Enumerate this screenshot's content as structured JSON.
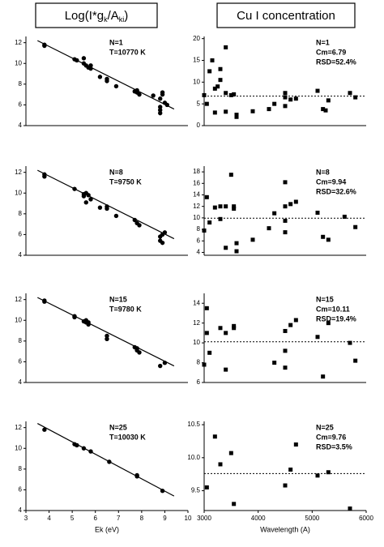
{
  "column_titles": {
    "left": [
      "Log(I*g",
      "k",
      "/A",
      "ki",
      ")"
    ],
    "right": "Cu I concentration"
  },
  "chart_data": [
    {
      "type": "scatter",
      "color": "#000000",
      "marker": "circle",
      "x": [
        3.8,
        3.8,
        5.1,
        5.2,
        5.5,
        5.5,
        5.6,
        5.7,
        5.8,
        5.8,
        6.2,
        6.5,
        6.5,
        6.9,
        7.7,
        7.8,
        7.9,
        7.8,
        8.5,
        8.8,
        8.9,
        8.9,
        8.8,
        8.8,
        8.8,
        9.0,
        9.1
      ],
      "y": [
        11.8,
        11.7,
        10.4,
        10.3,
        10.5,
        10.0,
        9.8,
        9.6,
        9.8,
        9.5,
        8.7,
        8.5,
        8.3,
        7.8,
        7.3,
        7.2,
        7.0,
        7.4,
        6.9,
        6.6,
        7.0,
        7.2,
        5.8,
        5.5,
        5.2,
        6.2,
        6.0
      ],
      "fit_line": {
        "x": [
          3.5,
          9.4
        ],
        "y": [
          12.2,
          5.6
        ]
      },
      "xlim": [
        3,
        10
      ],
      "ylim": [
        4,
        12.6
      ],
      "yticks": [
        4,
        6,
        8,
        10,
        12
      ],
      "annotations": [
        "N=1",
        "T=10770 K"
      ]
    },
    {
      "type": "scatter",
      "color": "#000000",
      "marker": "square",
      "x": [
        3000,
        3050,
        3100,
        3150,
        3200,
        3250,
        3200,
        3300,
        3300,
        3400,
        3400,
        3400,
        3500,
        3550,
        3600,
        3600,
        3900,
        4200,
        4300,
        4500,
        4500,
        4500,
        4600,
        4700,
        5100,
        5200,
        5250,
        5300,
        5700,
        5800
      ],
      "y": [
        7,
        5,
        12.5,
        15,
        8.5,
        9,
        3,
        13,
        10.5,
        18,
        7.5,
        3.2,
        7,
        7.2,
        2,
        2.5,
        3.3,
        3.8,
        5,
        6.5,
        7.5,
        4.5,
        6,
        6.2,
        8,
        3.8,
        3.5,
        5.8,
        7.5,
        6.5
      ],
      "hline": 6.79,
      "xlim": [
        3000,
        6000
      ],
      "ylim": [
        0,
        20.5
      ],
      "yticks": [
        0,
        5,
        10,
        15,
        20
      ],
      "annotations": [
        "N=1",
        "Cm=6.79",
        "RSD=52.4%"
      ]
    },
    {
      "type": "scatter",
      "color": "#000000",
      "marker": "circle",
      "x": [
        3.8,
        3.8,
        5.1,
        5.5,
        5.5,
        5.6,
        5.7,
        5.6,
        5.8,
        6.2,
        6.5,
        6.5,
        6.9,
        7.7,
        7.8,
        7.9,
        8.8,
        8.8,
        8.9,
        9.0,
        8.9
      ],
      "y": [
        11.8,
        11.6,
        10.4,
        9.9,
        9.7,
        10.0,
        9.8,
        9.1,
        9.4,
        8.6,
        8.5,
        8.7,
        7.8,
        7.4,
        7.1,
        6.9,
        5.8,
        5.4,
        6.0,
        6.2,
        5.2
      ],
      "fit_line": {
        "x": [
          3.5,
          9.4
        ],
        "y": [
          12.2,
          5.6
        ]
      },
      "xlim": [
        3,
        10
      ],
      "ylim": [
        4,
        12.6
      ],
      "yticks": [
        4,
        6,
        8,
        10,
        12
      ],
      "annotations": [
        "N=8",
        "T=9750 K"
      ]
    },
    {
      "type": "scatter",
      "color": "#000000",
      "marker": "square",
      "x": [
        3000,
        3050,
        3100,
        3200,
        3300,
        3400,
        3300,
        3400,
        3500,
        3550,
        3550,
        3600,
        3600,
        3900,
        4200,
        4300,
        4500,
        4500,
        4500,
        4500,
        4600,
        4700,
        5100,
        5200,
        5300,
        5600,
        5800
      ],
      "y": [
        7.8,
        13.6,
        9.2,
        11.8,
        12,
        12,
        9.8,
        4.8,
        17.5,
        12,
        11.6,
        5.6,
        4.2,
        6.2,
        8.2,
        10.8,
        16.2,
        12,
        9.5,
        7.5,
        12.4,
        12.8,
        10.9,
        6.7,
        6.2,
        10.2,
        8.4
      ],
      "hline": 9.94,
      "xlim": [
        3000,
        6000
      ],
      "ylim": [
        3.5,
        19
      ],
      "yticks": [
        4,
        6,
        8,
        10,
        12,
        14,
        16,
        18
      ],
      "annotations": [
        "N=8",
        "Cm=9.94",
        "RSD=32.6%"
      ]
    },
    {
      "type": "scatter",
      "color": "#000000",
      "marker": "circle",
      "x": [
        3.8,
        3.8,
        5.1,
        5.1,
        5.5,
        5.6,
        5.6,
        5.7,
        5.7,
        6.5,
        6.5,
        7.7,
        7.8,
        7.8,
        7.9,
        8.8,
        9.0
      ],
      "y": [
        11.8,
        11.9,
        10.4,
        10.3,
        9.9,
        9.8,
        10.0,
        9.8,
        9.6,
        8.5,
        8.2,
        7.4,
        7.3,
        7.1,
        6.9,
        5.6,
        5.9
      ],
      "fit_line": {
        "x": [
          3.5,
          9.4
        ],
        "y": [
          12.2,
          5.6
        ]
      },
      "xlim": [
        3,
        10
      ],
      "ylim": [
        4,
        12.6
      ],
      "yticks": [
        4,
        6,
        8,
        10,
        12
      ],
      "annotations": [
        "N=15",
        "T=9780 K"
      ]
    },
    {
      "type": "scatter",
      "color": "#000000",
      "marker": "square",
      "x": [
        3000,
        3050,
        3100,
        3050,
        3300,
        3400,
        3400,
        3550,
        3550,
        4300,
        4500,
        4500,
        4500,
        4600,
        4700,
        5100,
        5200,
        5300,
        5700,
        5800
      ],
      "y": [
        7.8,
        13.5,
        9,
        11,
        11.5,
        11,
        7.3,
        11.5,
        11.7,
        8,
        11.2,
        9.2,
        7.5,
        11.8,
        12.3,
        10.6,
        6.6,
        12,
        10,
        8.2
      ],
      "hline": 10.11,
      "xlim": [
        3000,
        6000
      ],
      "ylim": [
        6,
        15
      ],
      "yticks": [
        6,
        8,
        10,
        12,
        14
      ],
      "annotations": [
        "N=15",
        "Cm=10.11",
        "RSD=19.4%"
      ]
    },
    {
      "type": "scatter",
      "color": "#000000",
      "marker": "circle",
      "x": [
        3.8,
        5.1,
        5.2,
        5.5,
        5.8,
        6.6,
        7.8,
        7.8,
        8.9
      ],
      "y": [
        11.8,
        10.4,
        10.3,
        10.0,
        9.7,
        8.7,
        7.4,
        7.3,
        5.9
      ],
      "fit_line": {
        "x": [
          3.5,
          9.4
        ],
        "y": [
          12.4,
          5.4
        ]
      },
      "xlim": [
        3,
        10
      ],
      "ylim": [
        4,
        12.6
      ],
      "yticks": [
        4,
        6,
        8,
        10,
        12
      ],
      "xticks": [
        3,
        4,
        5,
        6,
        7,
        8,
        9,
        10
      ],
      "xlabel": "Ek (eV)",
      "annotations": [
        "N=25",
        "T=10030 K"
      ]
    },
    {
      "type": "scatter",
      "color": "#000000",
      "marker": "square",
      "x": [
        3050,
        3200,
        3300,
        3500,
        3550,
        4500,
        4600,
        4700,
        5100,
        5300,
        5700
      ],
      "y": [
        9.55,
        10.32,
        9.9,
        10.07,
        9.3,
        9.58,
        9.82,
        10.2,
        9.73,
        9.78,
        9.23
      ],
      "hline": 9.76,
      "xlim": [
        3000,
        6000
      ],
      "ylim": [
        9.2,
        10.55
      ],
      "yticks": [
        9.5,
        {
          "value": 10,
          "label": "10.0"
        },
        10.5
      ],
      "xticks": [
        3000,
        4000,
        5000,
        6000
      ],
      "xlabel": "Wavelength (A)",
      "annotations": [
        "N=25",
        "Cm=9.76",
        "RSD=3.5%"
      ]
    }
  ]
}
